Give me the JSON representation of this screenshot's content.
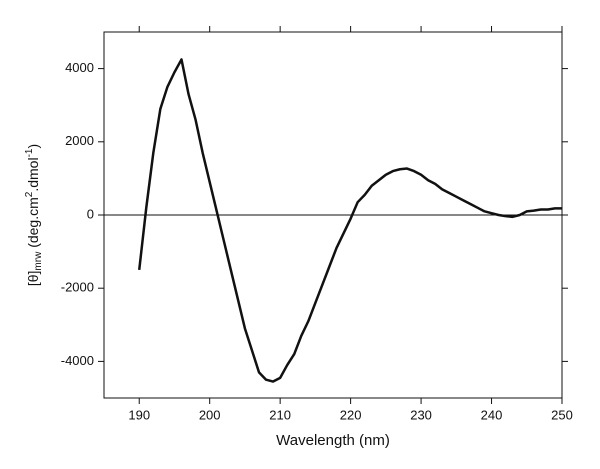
{
  "chart_data": {
    "type": "line",
    "xlabel": "Wavelength (nm)",
    "ylabel_parts": [
      "[θ]",
      "mrw",
      " (deg.cm",
      "2",
      ".dmol",
      "-1",
      ")"
    ],
    "x": [
      190,
      191,
      192,
      193,
      194,
      195,
      196,
      197,
      198,
      199,
      200,
      201,
      202,
      203,
      204,
      205,
      206,
      207,
      208,
      209,
      210,
      211,
      212,
      213,
      214,
      215,
      216,
      217,
      218,
      219,
      220,
      221,
      222,
      223,
      224,
      225,
      226,
      227,
      228,
      229,
      230,
      231,
      232,
      233,
      234,
      235,
      236,
      237,
      238,
      239,
      240,
      241,
      242,
      243,
      244,
      245,
      246,
      247,
      248,
      249,
      250
    ],
    "series": [
      {
        "color": "#111111",
        "values": [
          -1500,
          200,
          1700,
          2900,
          3500,
          3900,
          4250,
          3300,
          2600,
          1700,
          900,
          100,
          -700,
          -1500,
          -2300,
          -3100,
          -3700,
          -4300,
          -4500,
          -4550,
          -4450,
          -4100,
          -3800,
          -3300,
          -2900,
          -2400,
          -1900,
          -1400,
          -900,
          -500,
          -100,
          350,
          550,
          800,
          950,
          1100,
          1200,
          1250,
          1270,
          1200,
          1100,
          950,
          850,
          700,
          600,
          500,
          400,
          300,
          200,
          100,
          50,
          0,
          -30,
          -50,
          0,
          100,
          120,
          150,
          150,
          180,
          180
        ]
      }
    ],
    "xlim": [
      185,
      250
    ],
    "xticks": [
      190,
      200,
      210,
      220,
      230,
      240,
      250
    ],
    "ylim": [
      -5000,
      5000
    ],
    "yticks": [
      -4000,
      -2000,
      0,
      2000,
      4000
    ],
    "hline": 0
  }
}
